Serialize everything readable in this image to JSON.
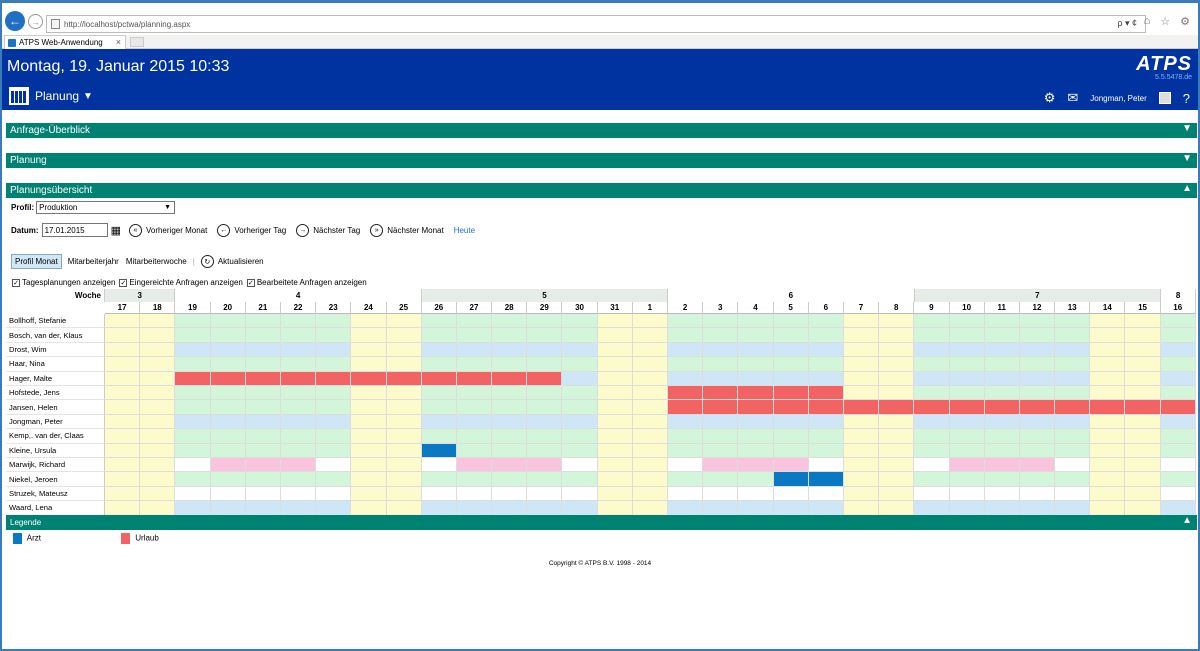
{
  "browser": {
    "url": "http://localhost/pctwa/planning.aspx",
    "tab_title": "ATPS Web-Anwendung",
    "addr_tools": "ρ ▾ ¢"
  },
  "header": {
    "datetime": "Montag, 19. Januar 2015 10:33",
    "brand": "ATPS",
    "version": "5.5.5478.de",
    "module": "Planung",
    "user": "Jongman, Peter"
  },
  "panels": {
    "anfrage": "Anfrage-Überblick",
    "planung": "Planung",
    "uebersicht": "Planungsübersicht",
    "legende": "Legende"
  },
  "controls": {
    "profil_label": "Profil:",
    "profil_value": "Produktion",
    "datum_label": "Datum:",
    "datum_value": "17.01.2015",
    "prev_month": "Vorheriger Monat",
    "prev_day": "Vorheriger Tag",
    "next_day": "Nächster Tag",
    "next_month": "Nächster Monat",
    "today": "Heute",
    "view_profil": "Profil Monat",
    "view_year": "Mitarbeiterjahr",
    "view_week": "Mitarbeiterwoche",
    "refresh": "Aktualisieren",
    "cb_day": "Tagesplanungen anzeigen",
    "cb_submitted": "Eingereichte Anfragen anzeigen",
    "cb_processed": "Bearbeitete Anfragen anzeigen"
  },
  "grid": {
    "week_label": "Woche",
    "weeks": [
      {
        "num": "3",
        "span": 2
      },
      {
        "num": "4",
        "span": 7
      },
      {
        "num": "5",
        "span": 7
      },
      {
        "num": "6",
        "span": 7
      },
      {
        "num": "7",
        "span": 7
      },
      {
        "num": "8",
        "span": 1
      }
    ],
    "days": [
      "17",
      "18",
      "19",
      "20",
      "21",
      "22",
      "23",
      "24",
      "25",
      "26",
      "27",
      "28",
      "29",
      "30",
      "31",
      "1",
      "2",
      "3",
      "4",
      "5",
      "6",
      "7",
      "8",
      "9",
      "10",
      "11",
      "12",
      "13",
      "14",
      "15",
      "16"
    ],
    "day_kinds": [
      "we",
      "we",
      "wd",
      "wd",
      "wd",
      "wd",
      "wd",
      "we",
      "we",
      "wd",
      "wd",
      "wd",
      "wd",
      "wd",
      "we",
      "we",
      "wd",
      "wd",
      "wd",
      "wd",
      "wd",
      "we",
      "we",
      "wd",
      "wd",
      "wd",
      "wd",
      "wd",
      "we",
      "we",
      "wd"
    ],
    "employees": [
      {
        "name": "Bollhoff, Stefanie",
        "base": "g",
        "marks": {}
      },
      {
        "name": "Bosch, van der, Klaus",
        "base": "g",
        "marks": {}
      },
      {
        "name": "Drost, Wim",
        "base": "b",
        "marks": {}
      },
      {
        "name": "Haar, Nina",
        "base": "g",
        "marks": {}
      },
      {
        "name": "Hager, Malte",
        "base": "b",
        "marks": {
          "2": "u",
          "3": "u",
          "4": "u",
          "5": "u",
          "6": "u",
          "7": "u",
          "8": "u",
          "9": "u",
          "10": "u",
          "11": "u",
          "12": "u"
        }
      },
      {
        "name": "Hofstede, Jens",
        "base": "g",
        "marks": {
          "16": "u",
          "17": "u",
          "18": "u",
          "19": "u",
          "20": "u"
        }
      },
      {
        "name": "Jansen, Helen",
        "base": "g",
        "marks": {
          "16": "u",
          "17": "u",
          "18": "u",
          "19": "u",
          "20": "u",
          "21": "u",
          "22": "u",
          "23": "u",
          "24": "u",
          "25": "u",
          "26": "u",
          "27": "u",
          "28": "u",
          "29": "u",
          "30": "u"
        }
      },
      {
        "name": "Jongman, Peter",
        "base": "b",
        "marks": {}
      },
      {
        "name": "Kemp,. van der, Claas",
        "base": "g",
        "marks": {}
      },
      {
        "name": "Kleine, Ursula",
        "base": "g",
        "marks": {
          "9": "a"
        }
      },
      {
        "name": "Marwijk, Richard",
        "base": "w",
        "marks": {
          "3": "p",
          "4": "p",
          "5": "p",
          "10": "p",
          "11": "p",
          "12": "p",
          "17": "p",
          "18": "p",
          "19": "p",
          "24": "p",
          "25": "p",
          "26": "p"
        }
      },
      {
        "name": "Niekel, Jeroen",
        "base": "g",
        "marks": {
          "19": "a",
          "20": "a"
        }
      },
      {
        "name": "Struzek, Mateusz",
        "base": "w",
        "marks": {}
      },
      {
        "name": "Waard, Lena",
        "base": "b",
        "marks": {}
      }
    ]
  },
  "legend": [
    {
      "label": "Arzt",
      "color": "#0a78c2"
    },
    {
      "label": "Urlaub",
      "color": "#f26464"
    }
  ],
  "colors": {
    "weekend": "#fdfacb",
    "green": "#d3f5da",
    "blue": "#cfe6f7",
    "white": "#ffffff",
    "pink": "#f8c4de",
    "urlaub": "#f26464",
    "arzt": "#0a78c2"
  },
  "copyright": "Copyright © ATPS B.V. 1998 - 2014"
}
